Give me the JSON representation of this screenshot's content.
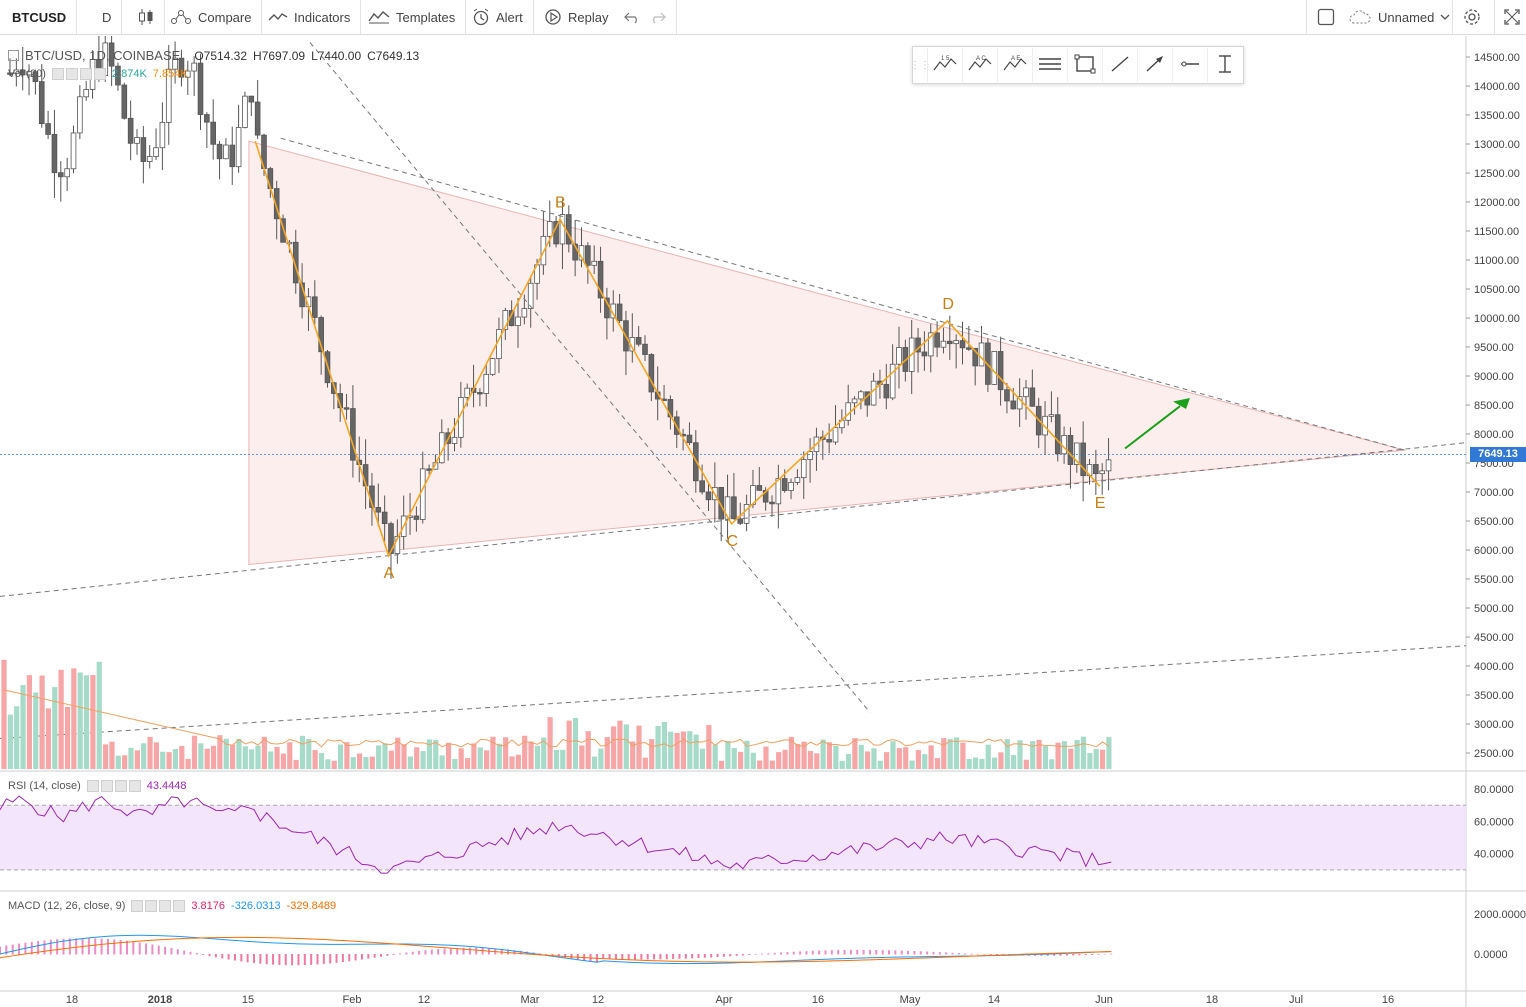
{
  "toolbar": {
    "symbol": "BTCUSD",
    "interval": "D",
    "compare": "Compare",
    "indicators": "Indicators",
    "templates": "Templates",
    "alert": "Alert",
    "replay": "Replay",
    "layout_name": "Unnamed"
  },
  "legend": {
    "pair": "BTC/USD, 1D, COINBASE",
    "open": "O7514.32",
    "high": "H7697.09",
    "low": "L7440.00",
    "close": "C7649.13",
    "vol_label": "Vol (20)",
    "vol_value": "2.874K",
    "vol_ma": "7.854K"
  },
  "rsi": {
    "label": "RSI (14, close)",
    "value": "43.4448"
  },
  "macd": {
    "label": "MACD (12, 26, close, 9)",
    "hist": "3.8176",
    "macd": "-326.0313",
    "signal": "-329.8489"
  },
  "price_axis": [
    "14500.00",
    "14000.00",
    "13500.00",
    "13000.00",
    "12500.00",
    "12000.00",
    "11500.00",
    "11000.00",
    "10500.00",
    "10000.00",
    "9500.00",
    "9000.00",
    "8500.00",
    "8000.00",
    "7500.00",
    "7000.00",
    "6500.00",
    "6000.00",
    "5500.00",
    "5000.00",
    "4500.00",
    "4000.00",
    "3500.00",
    "3000.00",
    "2500.00"
  ],
  "current_price": "7649.13",
  "rsi_axis": [
    "80.0000",
    "60.0000",
    "40.0000"
  ],
  "macd_axis": [
    "2000.0000",
    "0.0000"
  ],
  "time_axis": [
    "18",
    "2018",
    "15",
    "Feb",
    "12",
    "Mar",
    "12",
    "Apr",
    "16",
    "May",
    "14",
    "Jun",
    "18",
    "Jul",
    "16"
  ],
  "wave_labels": [
    "A",
    "B",
    "C",
    "D",
    "E"
  ],
  "colors": {
    "up": "#26a69a",
    "down": "#ef5350",
    "wave": "#f5a623",
    "triangle_fill": "#fbe3e3",
    "arrow": "#1aa01a",
    "rsi": "#9c27b0",
    "macd": "#2196f3",
    "signal": "#ff6d00",
    "label_blue": "#3179d4"
  },
  "chart_data": {
    "type": "candlestick",
    "symbol": "BTC/USD",
    "interval": "1D",
    "exchange": "COINBASE",
    "last": {
      "open": 7514.32,
      "high": 7697.09,
      "low": 7440.0,
      "close": 7649.13
    },
    "ylim": [
      2300,
      14700
    ],
    "pattern": "Elliott ABCDE triangle",
    "wave_points": [
      {
        "label": "start",
        "date": "2018-01-16",
        "price": 13050
      },
      {
        "label": "A",
        "date": "2018-02-06",
        "price": 5900
      },
      {
        "label": "B",
        "date": "2018-03-05",
        "price": 11700
      },
      {
        "label": "C",
        "date": "2018-04-01",
        "price": 6450
      },
      {
        "label": "D",
        "date": "2018-05-05",
        "price": 9950
      },
      {
        "label": "E",
        "date": "2018-05-29",
        "price": 7100
      }
    ],
    "rsi_last": 43.4448,
    "macd_last": {
      "hist": 3.8176,
      "macd": -326.0313,
      "signal": -329.8489
    }
  }
}
